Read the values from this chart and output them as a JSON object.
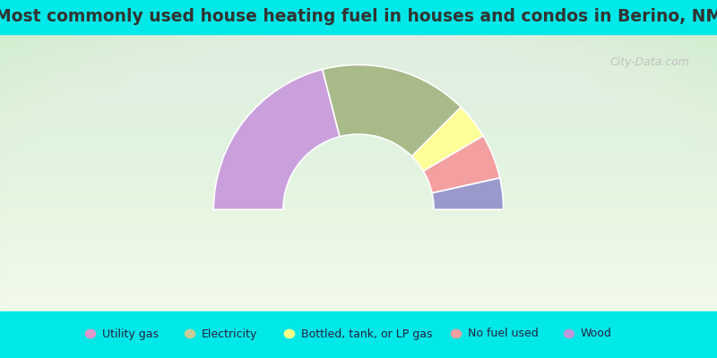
{
  "title": "Most commonly used house heating fuel in houses and condos in Berino, NM",
  "categories": [
    "Utility gas",
    "Electricity",
    "Bottled, tank, or LP gas",
    "No fuel used",
    "Wood"
  ],
  "values": [
    42,
    33,
    8,
    10,
    7
  ],
  "colors": [
    "#c9a0dc",
    "#a8ba88",
    "#ffff99",
    "#f4a0a0",
    "#9999cc"
  ],
  "legend_colors": [
    "#dd99cc",
    "#c8cc99",
    "#ffff88",
    "#f4a0a0",
    "#bb99dd"
  ],
  "bg_cyan": "#00e8e8",
  "title_color": "#333333",
  "title_fontsize": 13.5,
  "watermark_color": "#bbbbbb",
  "outer_r": 1.0,
  "inner_r": 0.52
}
